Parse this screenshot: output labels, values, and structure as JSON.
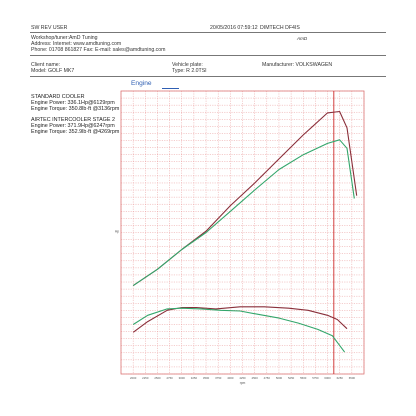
{
  "header": {
    "software": "SW REV    USER",
    "datetime": "20/05/2016 07:59:12",
    "system": "DIMTECH DF4IS",
    "logo": "AmD",
    "workshop": "Workshop/tuner:AmD Tuning",
    "address": "Address:  Internet: www.amdtuning.com",
    "phone": "Phone: 01708 861827 Fax:  E-mail: sales@amdtuning.com"
  },
  "vehicle": {
    "client_name": "Client name:",
    "model": "Model: GOLF MK7",
    "plate": "Vehicle plate:",
    "type": "Type: R 2.0TSI",
    "manufacturer": "Manufacturer: VOLKSWAGEN"
  },
  "tab": {
    "label": "Engine"
  },
  "runs": [
    {
      "name": "STANDARD COOLER",
      "power": "Engine Power: 336.1Hp@6129rpm",
      "torque": "Engine Torque: 350.8lb·ft @3136rpm"
    },
    {
      "name": "AIRTEC INTERCOOLER STAGE 2",
      "power": "Engine Power: 371.9Hp@6247rpm",
      "torque": "Engine Torque: 352.9lb·ft @4269rpm"
    }
  ],
  "chart_data": {
    "type": "line",
    "x_label": "rpm",
    "y_label": "Hp",
    "xlim": [
      1750,
      6750
    ],
    "ylim": [
      0,
      40
    ],
    "colors": {
      "standard": "#8a2f3a",
      "airtec": "#33a66b",
      "marker": "#cc2a2a",
      "grid": "#ea9c9c"
    },
    "series": [
      {
        "name": "STANDARD COOLER",
        "curves": {
          "power": {
            "x": [
              2000,
              2500,
              3000,
              3500,
              4000,
              4500,
              5000,
              5500,
              6000,
              6247,
              6400,
              6600
            ],
            "y": [
              12.5,
              14.8,
              17.6,
              20.2,
              23.8,
              27.0,
              30.4,
              33.8,
              36.9,
              37.1,
              34.8,
              25.2
            ]
          },
          "torque": {
            "x": [
              2000,
              2300,
              2700,
              3000,
              3300,
              3700,
              4200,
              4700,
              5200,
              5600,
              6000,
              6200,
              6400
            ],
            "y": [
              5.9,
              7.4,
              9.0,
              9.4,
              9.4,
              9.2,
              9.5,
              9.5,
              9.3,
              9.0,
              8.3,
              7.7,
              6.4
            ]
          }
        }
      },
      {
        "name": "AIRTEC INTERCOOLER STAGE 2",
        "curves": {
          "power": {
            "x": [
              2000,
              2500,
              3000,
              3500,
              4000,
              4500,
              5000,
              5500,
              6000,
              6247,
              6400,
              6550
            ],
            "y": [
              12.5,
              14.8,
              17.6,
              20.0,
              23.0,
              26.0,
              28.9,
              31.0,
              32.6,
              33.1,
              31.9,
              24.8
            ]
          },
          "torque": {
            "x": [
              2000,
              2300,
              2700,
              3000,
              3400,
              3800,
              4200,
              4600,
              5000,
              5400,
              5800,
              6100,
              6350
            ],
            "y": [
              7.0,
              8.3,
              9.2,
              9.3,
              9.2,
              9.0,
              8.9,
              8.4,
              7.9,
              7.2,
              6.3,
              5.4,
              3.1
            ]
          }
        }
      }
    ],
    "marker_rpm": 6129
  }
}
